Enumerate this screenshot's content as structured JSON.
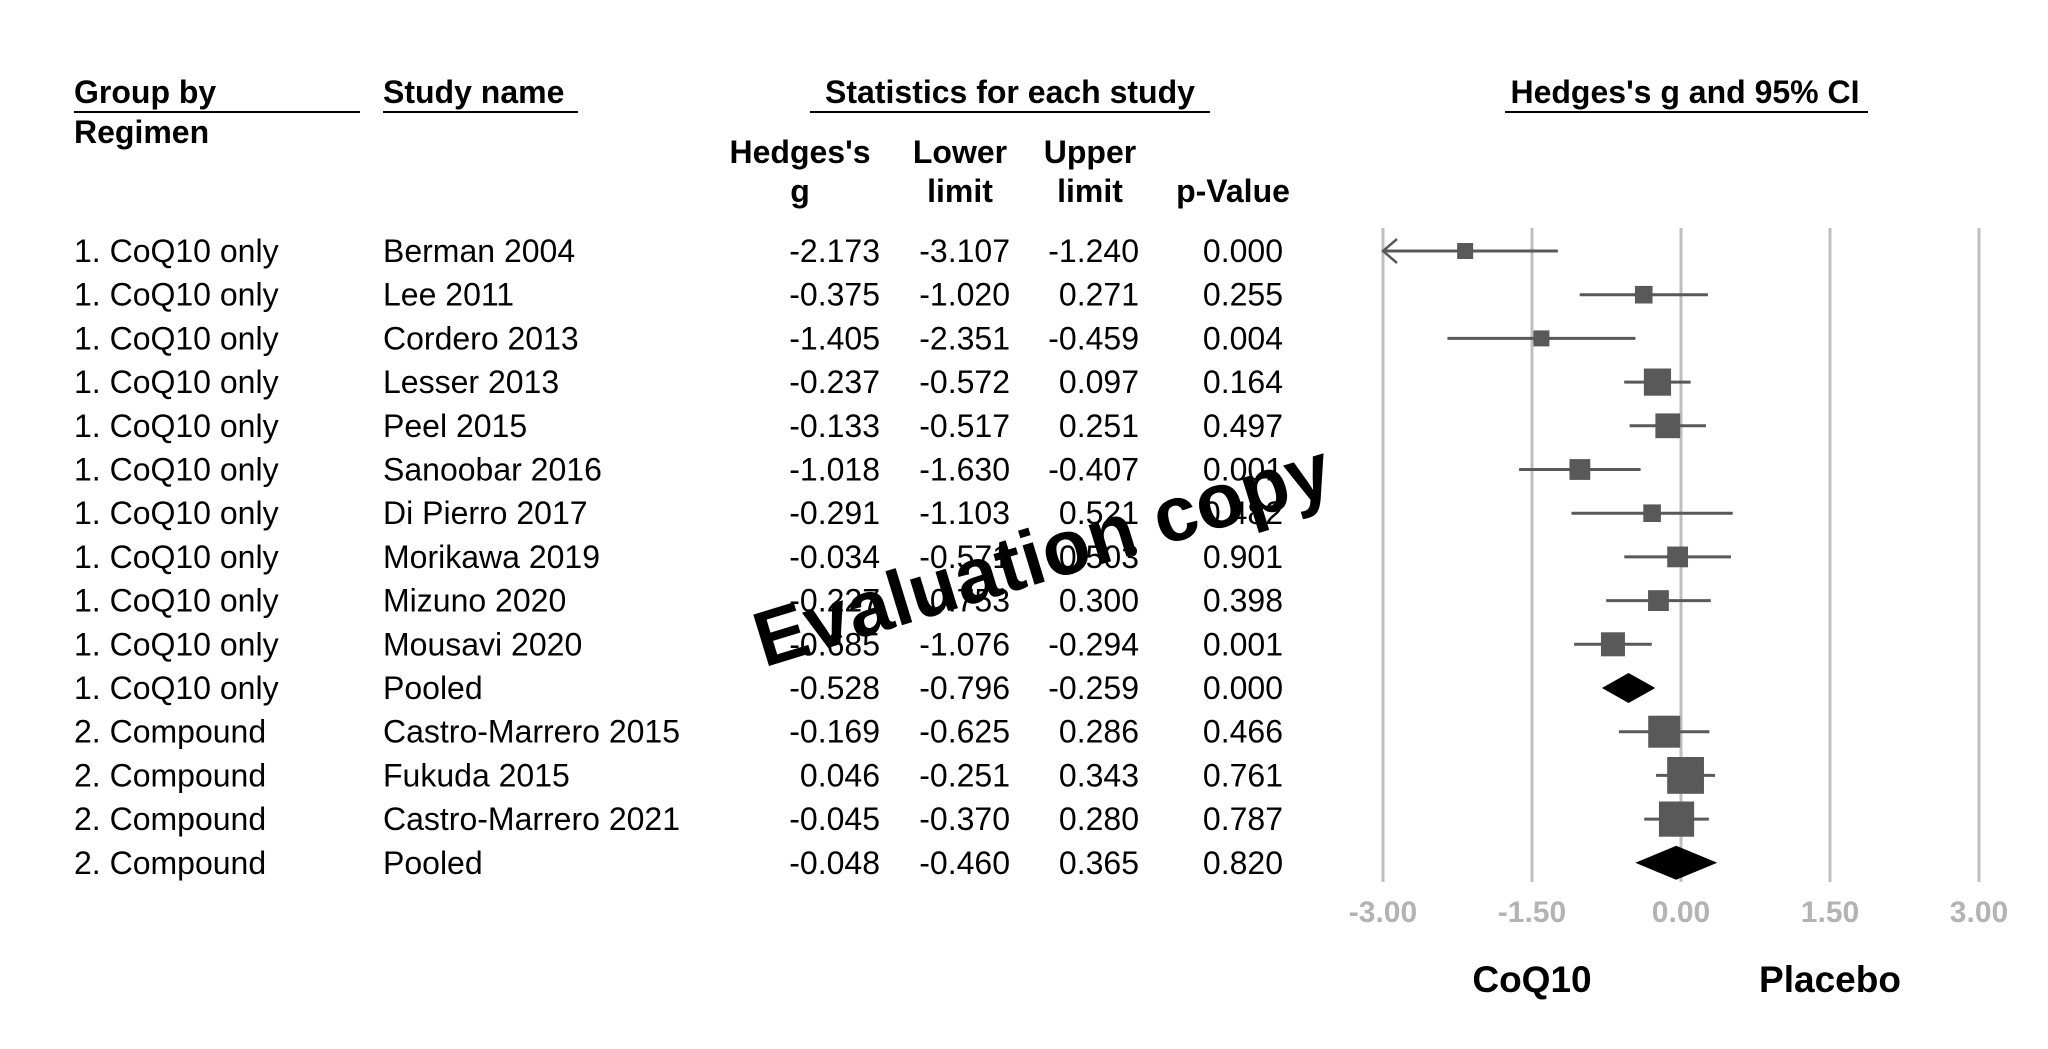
{
  "headers": {
    "group_line1": "Group by",
    "group_line2": "Regimen",
    "study": "Study name",
    "stats": "Statistics for each study",
    "plot": "Hedges's g and 95% CI",
    "col_g_line1": "Hedges's",
    "col_g_line2": "g",
    "col_lower_line1": "Lower",
    "col_lower_line2": "limit",
    "col_upper_line1": "Upper",
    "col_upper_line2": "limit",
    "col_p": "p-Value"
  },
  "rows": [
    {
      "group": "1. CoQ10 only",
      "study": "Berman 2004",
      "g": "-2.173",
      "lower": "-3.107",
      "upper": "-1.240",
      "p": "0.000"
    },
    {
      "group": "1. CoQ10 only",
      "study": "Lee 2011",
      "g": "-0.375",
      "lower": "-1.020",
      "upper": "0.271",
      "p": "0.255"
    },
    {
      "group": "1. CoQ10 only",
      "study": "Cordero 2013",
      "g": "-1.405",
      "lower": "-2.351",
      "upper": "-0.459",
      "p": "0.004"
    },
    {
      "group": "1. CoQ10 only",
      "study": "Lesser 2013",
      "g": "-0.237",
      "lower": "-0.572",
      "upper": "0.097",
      "p": "0.164"
    },
    {
      "group": "1. CoQ10 only",
      "study": "Peel 2015",
      "g": "-0.133",
      "lower": "-0.517",
      "upper": "0.251",
      "p": "0.497"
    },
    {
      "group": "1. CoQ10 only",
      "study": "Sanoobar 2016",
      "g": "-1.018",
      "lower": "-1.630",
      "upper": "-0.407",
      "p": "0.001"
    },
    {
      "group": "1. CoQ10 only",
      "study": "Di Pierro 2017",
      "g": "-0.291",
      "lower": "-1.103",
      "upper": "0.521",
      "p": "0.482"
    },
    {
      "group": "1. CoQ10 only",
      "study": "Morikawa 2019",
      "g": "-0.034",
      "lower": "-0.571",
      "upper": "0.503",
      "p": "0.901"
    },
    {
      "group": "1. CoQ10 only",
      "study": "Mizuno 2020",
      "g": "-0.227",
      "lower": "-0.753",
      "upper": "0.300",
      "p": "0.398"
    },
    {
      "group": "1. CoQ10 only",
      "study": "Mousavi 2020",
      "g": "-0.685",
      "lower": "-1.076",
      "upper": "-0.294",
      "p": "0.001"
    },
    {
      "group": "1. CoQ10 only",
      "study": "Pooled",
      "g": "-0.528",
      "lower": "-0.796",
      "upper": "-0.259",
      "p": "0.000"
    },
    {
      "group": "2. Compound",
      "study": "Castro-Marrero 2015",
      "g": "-0.169",
      "lower": "-0.625",
      "upper": "0.286",
      "p": "0.466"
    },
    {
      "group": "2. Compound",
      "study": "Fukuda 2015",
      "g": "0.046",
      "lower": "-0.251",
      "upper": "0.343",
      "p": "0.761"
    },
    {
      "group": "2. Compound",
      "study": "Castro-Marrero 2021",
      "g": "-0.045",
      "lower": "-0.370",
      "upper": "0.280",
      "p": "0.787"
    },
    {
      "group": "2. Compound",
      "study": "Pooled",
      "g": "-0.048",
      "lower": "-0.460",
      "upper": "0.365",
      "p": "0.820"
    }
  ],
  "chart_data": {
    "type": "forest",
    "title": "Hedges's g and 95% CI",
    "xlim": [
      -3.0,
      3.0
    ],
    "xticks": [
      -3.0,
      -1.5,
      0.0,
      1.5,
      3.0
    ],
    "xtick_labels": [
      "-3.00",
      "-1.50",
      "0.00",
      "1.50",
      "3.00"
    ],
    "grid": true,
    "left_label": "CoQ10",
    "right_label": "Placebo",
    "points": [
      {
        "study": "Berman 2004",
        "g": -2.173,
        "lower": -3.107,
        "upper": -1.24,
        "weight": 1,
        "kind": "study",
        "truncated_left": true
      },
      {
        "study": "Lee 2011",
        "g": -0.375,
        "lower": -1.02,
        "upper": 0.271,
        "weight": 1.1,
        "kind": "study"
      },
      {
        "study": "Cordero 2013",
        "g": -1.405,
        "lower": -2.351,
        "upper": -0.459,
        "weight": 1,
        "kind": "study"
      },
      {
        "study": "Lesser 2013",
        "g": -0.237,
        "lower": -0.572,
        "upper": 0.097,
        "weight": 1.7,
        "kind": "study"
      },
      {
        "study": "Peel 2015",
        "g": -0.133,
        "lower": -0.517,
        "upper": 0.251,
        "weight": 1.55,
        "kind": "study"
      },
      {
        "study": "Sanoobar 2016",
        "g": -1.018,
        "lower": -1.63,
        "upper": -0.407,
        "weight": 1.3,
        "kind": "study"
      },
      {
        "study": "Di Pierro 2017",
        "g": -0.291,
        "lower": -1.103,
        "upper": 0.521,
        "weight": 1.1,
        "kind": "study"
      },
      {
        "study": "Morikawa 2019",
        "g": -0.034,
        "lower": -0.571,
        "upper": 0.503,
        "weight": 1.3,
        "kind": "study"
      },
      {
        "study": "Mizuno 2020",
        "g": -0.227,
        "lower": -0.753,
        "upper": 0.3,
        "weight": 1.3,
        "kind": "study"
      },
      {
        "study": "Mousavi 2020",
        "g": -0.685,
        "lower": -1.076,
        "upper": -0.294,
        "weight": 1.5,
        "kind": "study"
      },
      {
        "study": "Pooled",
        "g": -0.528,
        "lower": -0.796,
        "upper": -0.259,
        "kind": "pooled"
      },
      {
        "study": "Castro-Marrero 2015",
        "g": -0.169,
        "lower": -0.625,
        "upper": 0.286,
        "weight": 2.0,
        "kind": "study"
      },
      {
        "study": "Fukuda 2015",
        "g": 0.046,
        "lower": -0.251,
        "upper": 0.343,
        "weight": 2.3,
        "kind": "study"
      },
      {
        "study": "Castro-Marrero 2021",
        "g": -0.045,
        "lower": -0.37,
        "upper": 0.28,
        "weight": 2.2,
        "kind": "study"
      },
      {
        "study": "Pooled",
        "g": -0.048,
        "lower": -0.46,
        "upper": 0.365,
        "kind": "pooled"
      }
    ],
    "colors": {
      "marker": "#595959",
      "pooled": "#000000",
      "grid": "#bfbfbf",
      "tick": "#b3b3b3"
    }
  },
  "watermark": "Evaluation copy"
}
